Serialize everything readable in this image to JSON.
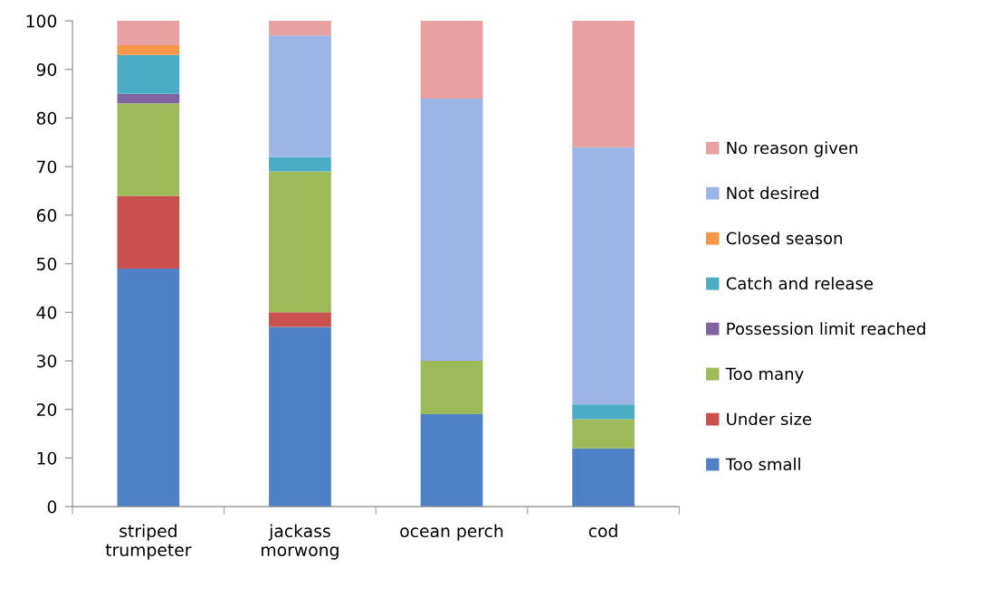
{
  "chart_data": {
    "type": "bar",
    "stacked": true,
    "categories": [
      "striped\ntrumpeter",
      "jackass\nmorwong",
      "ocean perch",
      "cod"
    ],
    "series": [
      {
        "name": "Too small",
        "color": "#4f81c7",
        "values": [
          49,
          37,
          19,
          12
        ]
      },
      {
        "name": "Under size",
        "color": "#c9504d",
        "values": [
          15,
          3,
          null,
          null
        ]
      },
      {
        "name": "Too many",
        "color": "#9bbb59",
        "values": [
          19,
          29,
          11,
          6
        ]
      },
      {
        "name": "Possession limit reached",
        "color": "#8064a2",
        "values": [
          2,
          null,
          null,
          null
        ]
      },
      {
        "name": "Catch and release",
        "color": "#4bacc6",
        "values": [
          8,
          3,
          null,
          3
        ]
      },
      {
        "name": "Closed season",
        "color": "#f79646",
        "values": [
          2,
          null,
          null,
          null
        ]
      },
      {
        "name": "Not desired",
        "color": "#9db5e6",
        "values": [
          null,
          25,
          54,
          53
        ]
      },
      {
        "name": "No reason given",
        "color": "#e8a0a0",
        "values": [
          5,
          3,
          16,
          26
        ]
      }
    ],
    "ylim": [
      0,
      100
    ],
    "yticks": [
      0,
      10,
      20,
      30,
      40,
      50,
      60,
      70,
      80,
      90,
      100
    ],
    "grid": false,
    "legend": "right"
  }
}
